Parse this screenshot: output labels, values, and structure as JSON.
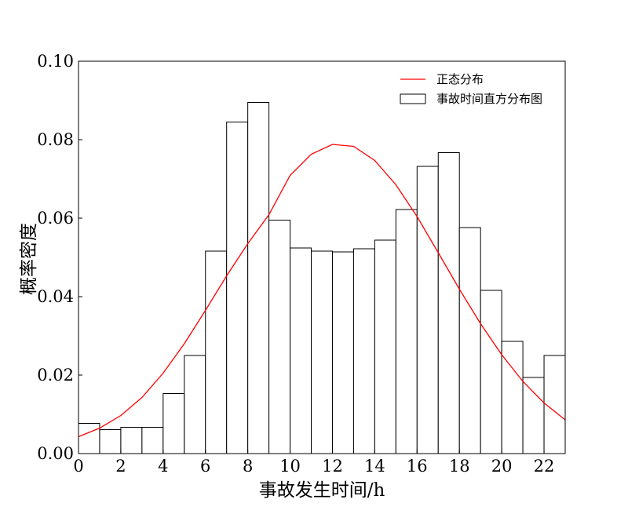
{
  "chart_data": {
    "type": "bar",
    "title": "",
    "xlabel": "事故发生时间/h",
    "ylabel": "概率密度",
    "xlim": [
      0,
      23
    ],
    "ylim": [
      0,
      0.1
    ],
    "grid": false,
    "legend_position": "top-right",
    "x_ticks": [
      "0",
      "2",
      "4",
      "6",
      "8",
      "10",
      "12",
      "14",
      "16",
      "18",
      "20",
      "22"
    ],
    "y_ticks": [
      "0.00",
      "0.02",
      "0.04",
      "0.06",
      "0.08",
      "0.10"
    ],
    "histogram": {
      "name": "事故时间直方分布图",
      "bin_edges": [
        0,
        1,
        2,
        3,
        4,
        5,
        6,
        7,
        8,
        9,
        10,
        11,
        12,
        13,
        14,
        15,
        16,
        17,
        18,
        19,
        20,
        21,
        22,
        23
      ],
      "values": [
        0.0077,
        0.0061,
        0.0067,
        0.0067,
        0.0153,
        0.025,
        0.0516,
        0.0845,
        0.0895,
        0.0595,
        0.0524,
        0.0516,
        0.0514,
        0.0522,
        0.0544,
        0.0622,
        0.0732,
        0.0767,
        0.0576,
        0.0416,
        0.0286,
        0.0194,
        0.025
      ],
      "fill_color": "#ffffff",
      "edge_color": "#000000"
    },
    "curve": {
      "name": "正态分布",
      "color": "#ff0000",
      "x": [
        0,
        1,
        2,
        3,
        4,
        5,
        6,
        7,
        8,
        9,
        10,
        11,
        12,
        13,
        14,
        15,
        16,
        17,
        18,
        19,
        20,
        21,
        22,
        23
      ],
      "values": [
        0.0043,
        0.0065,
        0.0097,
        0.0143,
        0.0205,
        0.028,
        0.0365,
        0.0453,
        0.0535,
        0.0609,
        0.0709,
        0.0763,
        0.0788,
        0.0783,
        0.0747,
        0.0685,
        0.0604,
        0.0512,
        0.0419,
        0.0331,
        0.0252,
        0.0184,
        0.0129,
        0.0086
      ]
    }
  }
}
